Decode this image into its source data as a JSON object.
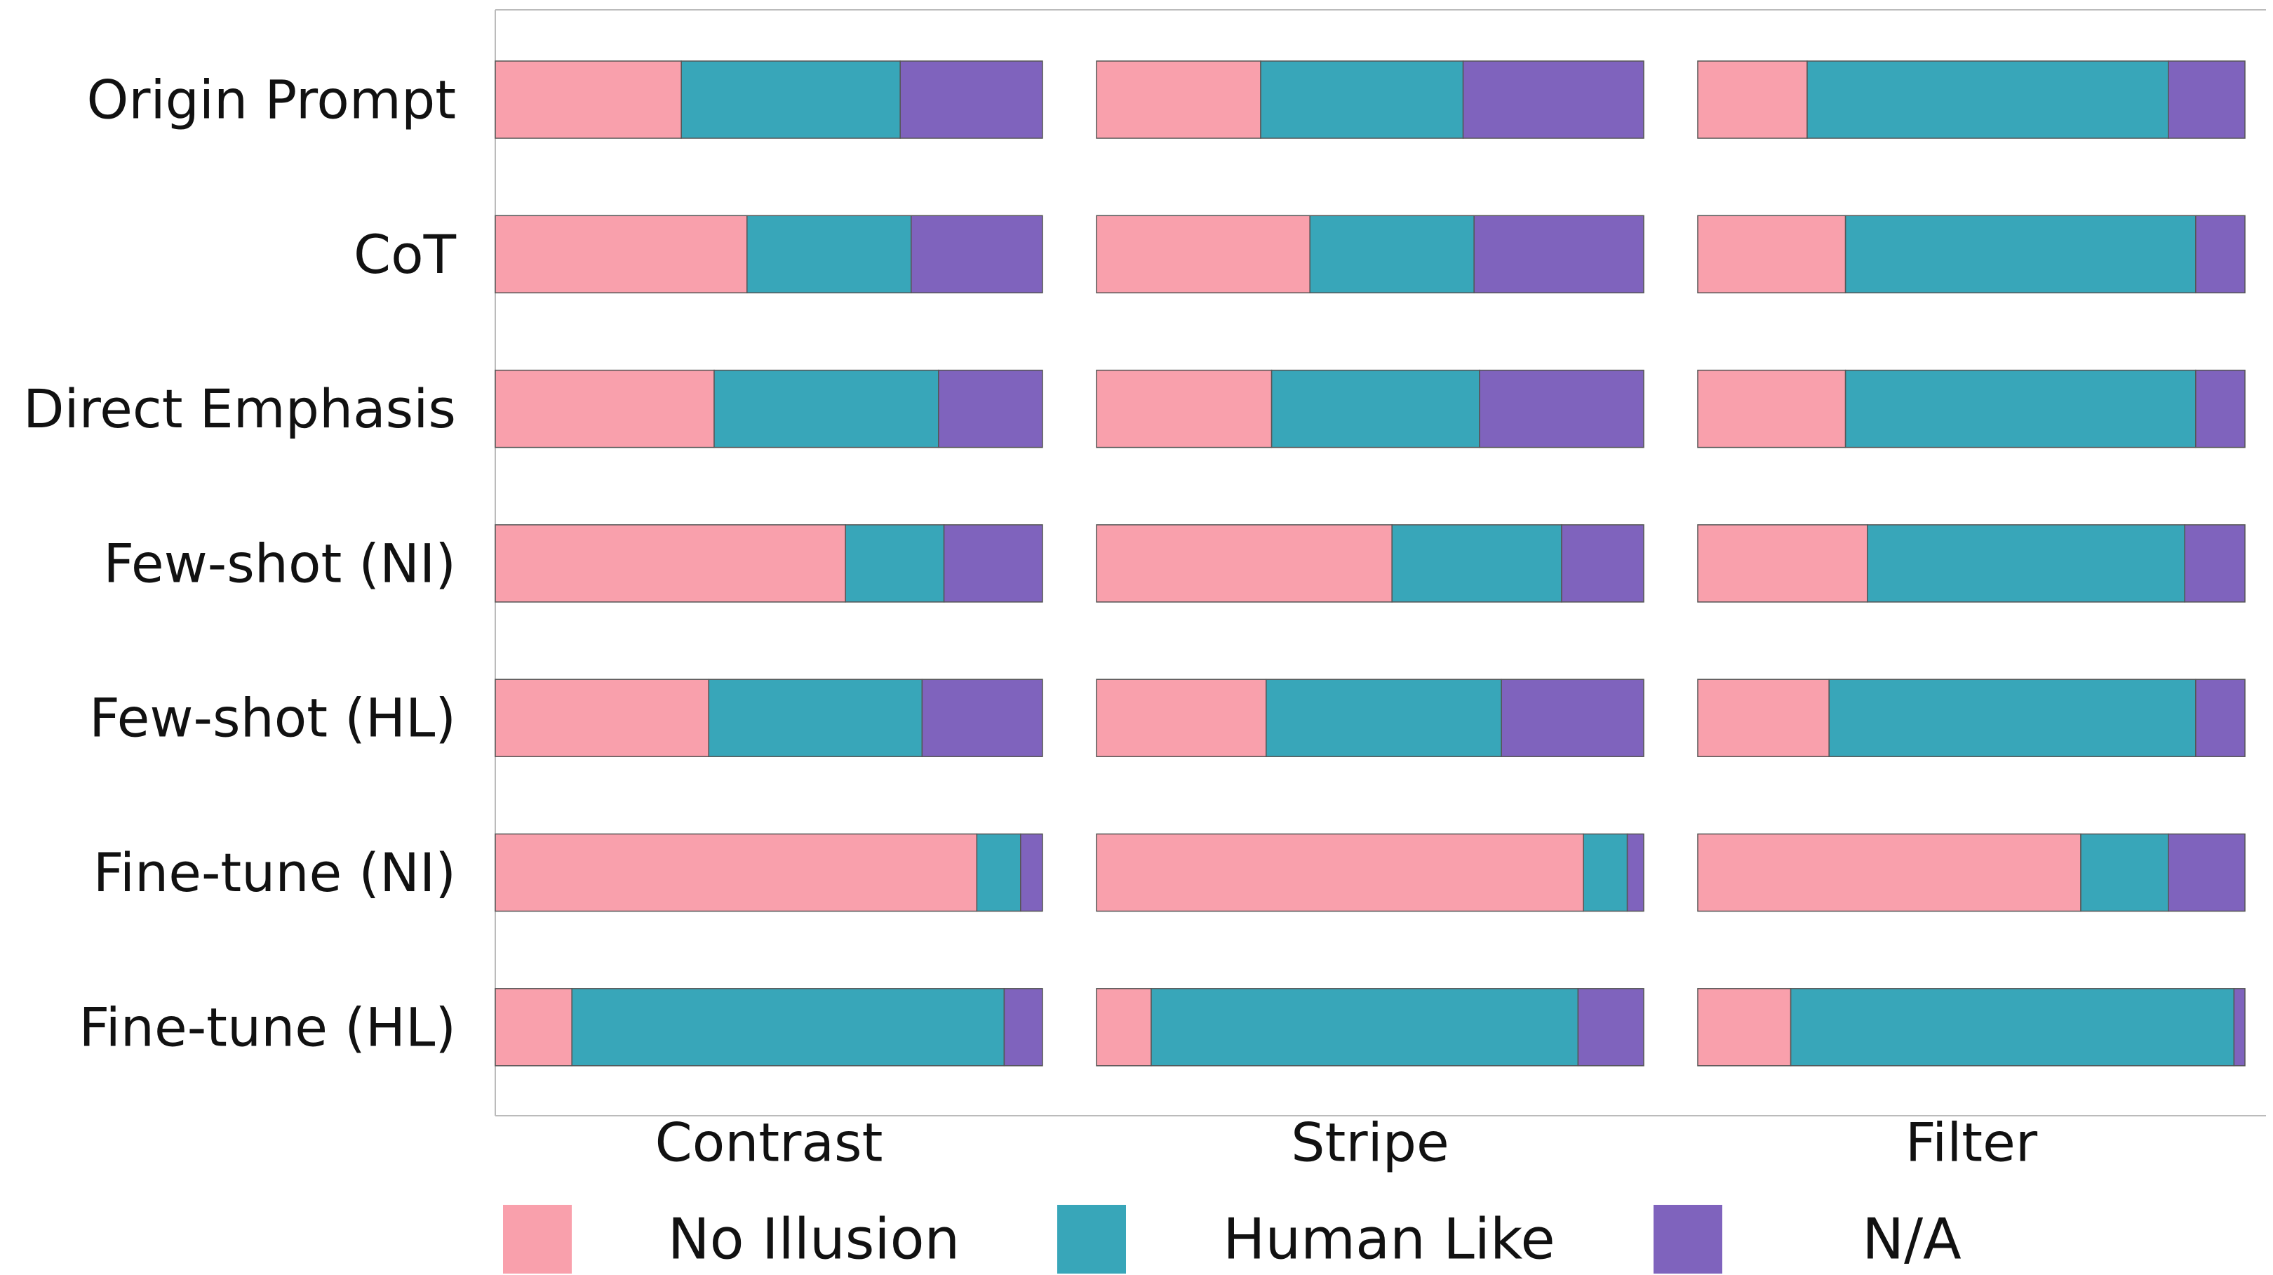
{
  "chart_data": {
    "type": "bar",
    "orientation": "horizontal",
    "stacked": true,
    "normalized": true,
    "grid": false,
    "legend_position": "bottom",
    "title": "",
    "xlabel": "",
    "ylabel": "",
    "xlim": [
      0,
      1
    ],
    "categories": [
      "Origin Prompt",
      "CoT",
      "Direct Emphasis",
      "Few-shot (NI)",
      "Few-shot (HL)",
      "Fine-tune (NI)",
      "Fine-tune (HL)"
    ],
    "legend": [
      {
        "name": "No Illusion",
        "color": "#f9a0ac"
      },
      {
        "name": "Human Like",
        "color": "#38a6b9"
      },
      {
        "name": "N/A",
        "color": "#7f63bd"
      }
    ],
    "panels": [
      {
        "name": "Contrast",
        "series": [
          {
            "name": "No Illusion",
            "values": [
              0.34,
              0.46,
              0.4,
              0.64,
              0.39,
              0.88,
              0.14
            ]
          },
          {
            "name": "Human Like",
            "values": [
              0.4,
              0.3,
              0.41,
              0.18,
              0.39,
              0.08,
              0.79
            ]
          },
          {
            "name": "N/A",
            "values": [
              0.26,
              0.24,
              0.19,
              0.18,
              0.22,
              0.04,
              0.07
            ]
          }
        ]
      },
      {
        "name": "Stripe",
        "series": [
          {
            "name": "No Illusion",
            "values": [
              0.3,
              0.39,
              0.32,
              0.54,
              0.31,
              0.89,
              0.1
            ]
          },
          {
            "name": "Human Like",
            "values": [
              0.37,
              0.3,
              0.38,
              0.31,
              0.43,
              0.08,
              0.78
            ]
          },
          {
            "name": "N/A",
            "values": [
              0.33,
              0.31,
              0.3,
              0.15,
              0.26,
              0.03,
              0.12
            ]
          }
        ]
      },
      {
        "name": "Filter",
        "series": [
          {
            "name": "No Illusion",
            "values": [
              0.2,
              0.27,
              0.27,
              0.31,
              0.24,
              0.7,
              0.17
            ]
          },
          {
            "name": "Human Like",
            "values": [
              0.66,
              0.64,
              0.64,
              0.58,
              0.67,
              0.16,
              0.81
            ]
          },
          {
            "name": "N/A",
            "values": [
              0.14,
              0.09,
              0.09,
              0.11,
              0.09,
              0.14,
              0.02
            ]
          }
        ]
      }
    ]
  }
}
